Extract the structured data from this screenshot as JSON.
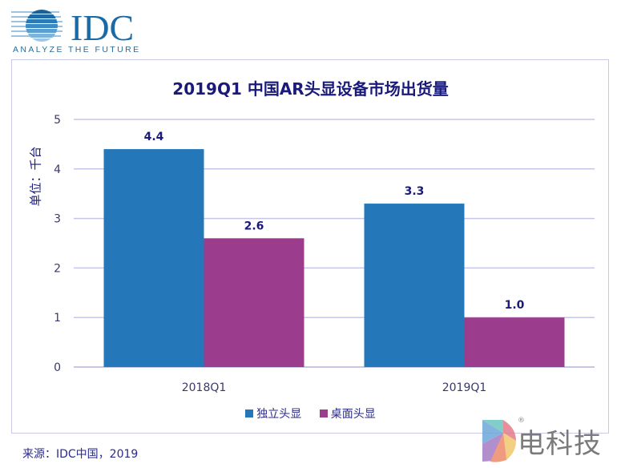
{
  "header": {
    "logo_text": "IDC",
    "logo_tagline": "ANALYZE THE FUTURE"
  },
  "chart_data": {
    "type": "bar",
    "title": "2019Q1 中国AR头显设备市场出货量",
    "ylabel": "单位：千台",
    "xlabel": "",
    "categories": [
      "2018Q1",
      "2019Q1"
    ],
    "series": [
      {
        "name": "独立头显",
        "color": "#2478ba",
        "values": [
          4.4,
          3.3
        ],
        "labels": [
          "4.4",
          "3.3"
        ]
      },
      {
        "name": "桌面头显",
        "color": "#9b3c8c",
        "values": [
          2.6,
          1.0
        ],
        "labels": [
          "2.6",
          "1.0"
        ]
      }
    ],
    "ylim": [
      0,
      5
    ],
    "yticks": [
      "0",
      "1",
      "2",
      "3",
      "4",
      "5"
    ],
    "grid": true,
    "legend_position": "bottom"
  },
  "footer": {
    "source": "来源：IDC中国，2019"
  },
  "watermark": {
    "text": "电科技",
    "registered": "®"
  },
  "colors": {
    "title": "#1a1a7a",
    "grid": "#c6c6e8",
    "tick": "#3a3a6a"
  }
}
